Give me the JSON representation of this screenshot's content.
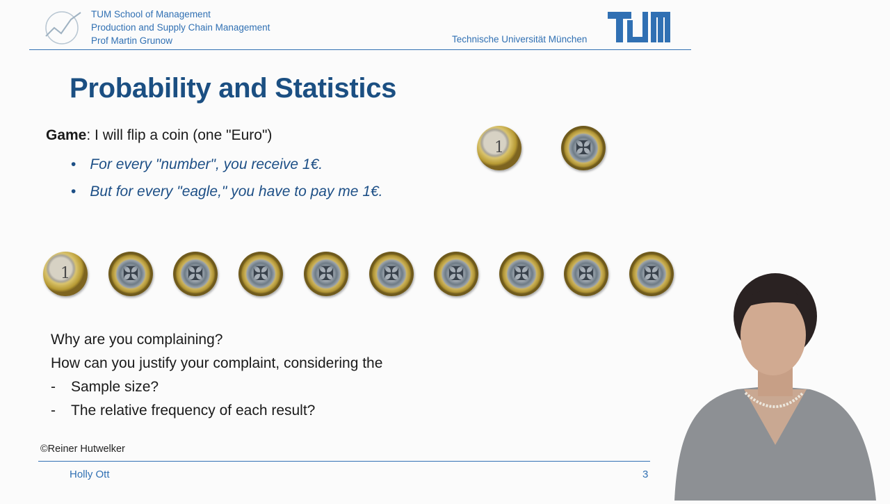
{
  "header": {
    "school_line1": "TUM School of Management",
    "school_line2": "Production and Supply Chain Management",
    "school_line3": "Prof Martin Grunow",
    "university": "Technische Universität München",
    "logo_text": "TUM"
  },
  "slide": {
    "title": "Probability and Statistics",
    "game_label": "Game",
    "game_text": ": I will flip a coin (one \"Euro\")",
    "bullets": [
      "For every \"number\", you receive 1€.",
      "But for every \"eagle,\" you have to pay me 1€."
    ],
    "coins_top": [
      "number",
      "eagle"
    ],
    "coins_row": [
      "number",
      "eagle",
      "eagle",
      "eagle",
      "eagle",
      "eagle",
      "eagle",
      "eagle",
      "eagle",
      "eagle"
    ],
    "question1": "Why are you complaining?",
    "question2": "How can you justify your complaint, considering the",
    "dash_items": [
      "Sample size?",
      "The relative frequency of each result?"
    ],
    "copyright": "©Reiner Hutwelker"
  },
  "footer": {
    "presenter": "Holly Ott",
    "page_number": "3"
  },
  "colors": {
    "accent": "#3070b3",
    "title": "#1b4f82",
    "bullet": "#1d4f86"
  }
}
